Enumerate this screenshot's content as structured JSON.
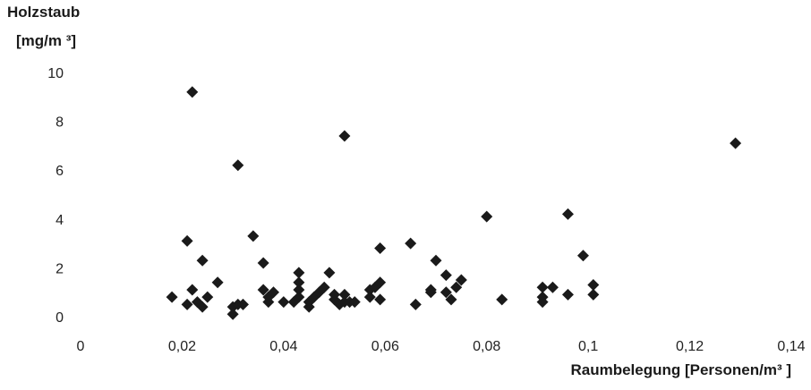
{
  "chart_data": {
    "type": "scatter",
    "ylabel_line1": "Holzstaub",
    "ylabel_line2": "[mg/m ³]",
    "xlabel": "Raumbelegung [Personen/m³ ]",
    "xlim": [
      0,
      0.14
    ],
    "ylim": [
      0,
      10
    ],
    "x_ticks": [
      "0",
      "0,02",
      "0,04",
      "0,06",
      "0,08",
      "0,1",
      "0,12",
      "0,14"
    ],
    "y_ticks": [
      "0",
      "2",
      "4",
      "6",
      "8",
      "10"
    ],
    "grid": false,
    "marker": "diamond",
    "marker_color": "#1a1a1a",
    "points": [
      {
        "x": 0.018,
        "y": 0.8
      },
      {
        "x": 0.021,
        "y": 3.1
      },
      {
        "x": 0.021,
        "y": 0.5
      },
      {
        "x": 0.022,
        "y": 1.1
      },
      {
        "x": 0.022,
        "y": 9.2
      },
      {
        "x": 0.023,
        "y": 0.6
      },
      {
        "x": 0.024,
        "y": 2.3
      },
      {
        "x": 0.024,
        "y": 0.4
      },
      {
        "x": 0.025,
        "y": 0.8
      },
      {
        "x": 0.027,
        "y": 1.4
      },
      {
        "x": 0.03,
        "y": 0.1
      },
      {
        "x": 0.03,
        "y": 0.4
      },
      {
        "x": 0.031,
        "y": 0.5
      },
      {
        "x": 0.031,
        "y": 6.2
      },
      {
        "x": 0.032,
        "y": 0.5
      },
      {
        "x": 0.034,
        "y": 3.3
      },
      {
        "x": 0.036,
        "y": 2.2
      },
      {
        "x": 0.036,
        "y": 1.1
      },
      {
        "x": 0.037,
        "y": 0.6
      },
      {
        "x": 0.037,
        "y": 0.8
      },
      {
        "x": 0.038,
        "y": 1.0
      },
      {
        "x": 0.04,
        "y": 0.6
      },
      {
        "x": 0.042,
        "y": 0.6
      },
      {
        "x": 0.043,
        "y": 1.1
      },
      {
        "x": 0.043,
        "y": 0.8
      },
      {
        "x": 0.043,
        "y": 1.4
      },
      {
        "x": 0.043,
        "y": 1.8
      },
      {
        "x": 0.045,
        "y": 0.4
      },
      {
        "x": 0.045,
        "y": 0.6
      },
      {
        "x": 0.046,
        "y": 0.8
      },
      {
        "x": 0.047,
        "y": 1.0
      },
      {
        "x": 0.048,
        "y": 1.2
      },
      {
        "x": 0.049,
        "y": 1.8
      },
      {
        "x": 0.05,
        "y": 0.7
      },
      {
        "x": 0.05,
        "y": 0.9
      },
      {
        "x": 0.051,
        "y": 0.5
      },
      {
        "x": 0.052,
        "y": 7.4
      },
      {
        "x": 0.052,
        "y": 0.6
      },
      {
        "x": 0.052,
        "y": 0.9
      },
      {
        "x": 0.053,
        "y": 0.6
      },
      {
        "x": 0.054,
        "y": 0.6
      },
      {
        "x": 0.057,
        "y": 1.1
      },
      {
        "x": 0.057,
        "y": 0.8
      },
      {
        "x": 0.058,
        "y": 1.2
      },
      {
        "x": 0.059,
        "y": 0.7
      },
      {
        "x": 0.059,
        "y": 1.4
      },
      {
        "x": 0.059,
        "y": 2.8
      },
      {
        "x": 0.065,
        "y": 3.0
      },
      {
        "x": 0.066,
        "y": 0.5
      },
      {
        "x": 0.069,
        "y": 1.0
      },
      {
        "x": 0.069,
        "y": 1.1
      },
      {
        "x": 0.07,
        "y": 2.3
      },
      {
        "x": 0.072,
        "y": 1.7
      },
      {
        "x": 0.072,
        "y": 1.0
      },
      {
        "x": 0.073,
        "y": 0.7
      },
      {
        "x": 0.074,
        "y": 1.2
      },
      {
        "x": 0.075,
        "y": 1.5
      },
      {
        "x": 0.08,
        "y": 4.1
      },
      {
        "x": 0.083,
        "y": 0.7
      },
      {
        "x": 0.091,
        "y": 0.6
      },
      {
        "x": 0.091,
        "y": 0.8
      },
      {
        "x": 0.091,
        "y": 1.2
      },
      {
        "x": 0.093,
        "y": 1.2
      },
      {
        "x": 0.096,
        "y": 0.9
      },
      {
        "x": 0.096,
        "y": 4.2
      },
      {
        "x": 0.099,
        "y": 2.5
      },
      {
        "x": 0.101,
        "y": 0.9
      },
      {
        "x": 0.101,
        "y": 1.3
      },
      {
        "x": 0.129,
        "y": 7.1
      }
    ]
  }
}
